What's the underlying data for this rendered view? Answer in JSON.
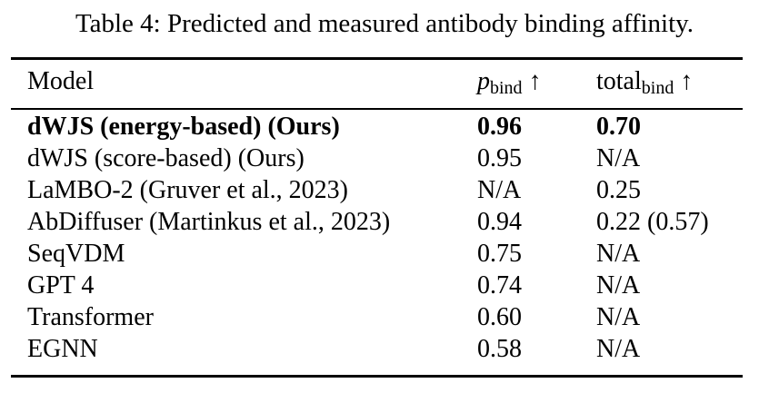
{
  "caption": "Table 4: Predicted and measured antibody binding affinity.",
  "table": {
    "header": {
      "model": "Model",
      "p_base": "p",
      "p_sub": "bind",
      "t_base": "total",
      "t_sub": "bind",
      "arrow": "↑"
    },
    "rows": [
      {
        "model": "dWJS (energy-based) (Ours)",
        "p_bind": "0.96",
        "total_bind": "0.70",
        "bold": true
      },
      {
        "model": "dWJS (score-based) (Ours)",
        "p_bind": "0.95",
        "total_bind": "N/A"
      },
      {
        "model": "LaMBO-2 (Gruver et al., 2023)",
        "p_bind": "N/A",
        "total_bind": "0.25"
      },
      {
        "model": "AbDiffuser (Martinkus et al., 2023)",
        "p_bind": "0.94",
        "total_bind": "0.22 (0.57)"
      },
      {
        "model": "SeqVDM",
        "p_bind": "0.75",
        "total_bind": "N/A"
      },
      {
        "model": "GPT 4",
        "p_bind": "0.74",
        "total_bind": "N/A"
      },
      {
        "model": "Transformer",
        "p_bind": "0.60",
        "total_bind": "N/A"
      },
      {
        "model": "EGNN",
        "p_bind": "0.58",
        "total_bind": "N/A"
      }
    ]
  }
}
